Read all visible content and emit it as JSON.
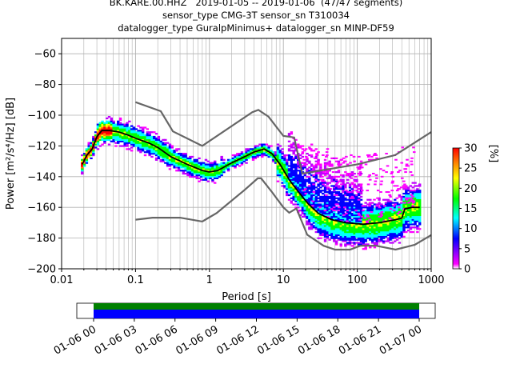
{
  "header": {
    "line1": "BK.KARE.00.HHZ   2019-01-05 -- 2019-01-06  (47/47 segments)",
    "line2": "sensor_type CMG-3T sensor_sn T310034",
    "line3": "datalogger_type GuralpMinimus+ datalogger_sn MINP-DF59"
  },
  "chart_data": {
    "type": "heatmap",
    "xlabel": "Period [s]",
    "ylabel": "Power [m²/s⁴/Hz] [dB]",
    "xscale": "log",
    "xlim": [
      0.01,
      1000
    ],
    "ylim": [
      -200,
      -50
    ],
    "xticks": [
      0.01,
      0.1,
      1,
      10,
      100,
      1000
    ],
    "xtick_labels": [
      "0.01",
      "0.1",
      "1",
      "10",
      "100",
      "1000"
    ],
    "yticks": [
      -200,
      -180,
      -160,
      -140,
      -120,
      -100,
      -80,
      -60
    ],
    "grid": true,
    "colorbar": {
      "label": "[%]",
      "range": [
        0,
        30
      ],
      "ticks": [
        0,
        5,
        10,
        15,
        20,
        25,
        30
      ],
      "colors": [
        "#ffffff",
        "#ff00ff",
        "#0000ff",
        "#00ffff",
        "#00ff00",
        "#ffff00",
        "#ff8000",
        "#ff0000"
      ]
    },
    "mode_curve": [
      [
        0.019,
        -132
      ],
      [
        0.022,
        -126
      ],
      [
        0.026,
        -122
      ],
      [
        0.03,
        -114
      ],
      [
        0.035,
        -110
      ],
      [
        0.045,
        -110
      ],
      [
        0.06,
        -111
      ],
      [
        0.08,
        -113
      ],
      [
        0.1,
        -115
      ],
      [
        0.15,
        -118
      ],
      [
        0.2,
        -121
      ],
      [
        0.3,
        -127
      ],
      [
        0.5,
        -132
      ],
      [
        0.8,
        -136
      ],
      [
        1.0,
        -137
      ],
      [
        1.3,
        -136
      ],
      [
        2.0,
        -131
      ],
      [
        3.0,
        -127
      ],
      [
        4.0,
        -124
      ],
      [
        5.5,
        -122
      ],
      [
        7.0,
        -125
      ],
      [
        9.0,
        -132
      ],
      [
        12.0,
        -142
      ],
      [
        16.0,
        -150
      ],
      [
        22.0,
        -158
      ],
      [
        30.0,
        -164
      ],
      [
        45.0,
        -168
      ],
      [
        70.0,
        -170
      ],
      [
        120.0,
        -171
      ],
      [
        200.0,
        -170
      ],
      [
        330.0,
        -168
      ],
      [
        400.0,
        -167
      ],
      [
        440.0,
        -161
      ],
      [
        550.0,
        -160
      ],
      [
        700.0,
        -160
      ]
    ],
    "nlnm": [
      [
        0.1,
        -168
      ],
      [
        0.17,
        -166.7
      ],
      [
        0.4,
        -166.7
      ],
      [
        0.8,
        -169.2
      ],
      [
        1.25,
        -163.7
      ],
      [
        3.0,
        -148.6
      ],
      [
        4.5,
        -141.1
      ],
      [
        5.0,
        -141.1
      ],
      [
        7.0,
        -150
      ],
      [
        10.0,
        -160
      ],
      [
        12.0,
        -163.5
      ],
      [
        15.0,
        -160.7
      ],
      [
        21.0,
        -177.8
      ],
      [
        35.0,
        -185
      ],
      [
        50.0,
        -187.5
      ],
      [
        80.0,
        -187.5
      ],
      [
        110.0,
        -185
      ],
      [
        180.0,
        -185
      ],
      [
        330.0,
        -187.5
      ],
      [
        600.0,
        -184.4
      ],
      [
        1000.0,
        -178
      ]
    ],
    "nhnm": [
      [
        0.1,
        -91.5
      ],
      [
        0.22,
        -97.4
      ],
      [
        0.32,
        -110.5
      ],
      [
        0.8,
        -120
      ],
      [
        3.8,
        -98
      ],
      [
        4.6,
        -96.5
      ],
      [
        6.3,
        -101
      ],
      [
        10.0,
        -113.5
      ],
      [
        14.0,
        -114.5
      ],
      [
        18.0,
        -138
      ],
      [
        100.0,
        -132
      ],
      [
        325.0,
        -126
      ],
      [
        1000.0,
        -111
      ]
    ],
    "time_coverage": {
      "tick_labels": [
        "01-06 00",
        "01-06 03",
        "01-06 06",
        "01-06 09",
        "01-06 12",
        "01-06 15",
        "01-06 18",
        "01-06 21",
        "01-07 00"
      ]
    }
  }
}
